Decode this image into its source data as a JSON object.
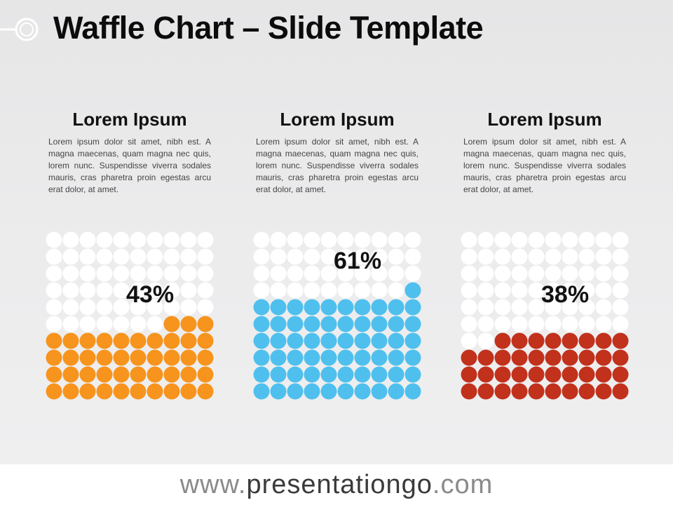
{
  "header": {
    "title": "Waffle Chart – Slide Template"
  },
  "panels": [
    {
      "heading": "Lorem Ipsum",
      "body": "Lorem ipsum dolor sit amet, nibh est. A magna maecenas, quam magna nec quis, lorem nunc. Suspendisse viverra sodales mauris, cras pharetra proin egestas arcu erat dolor, at amet."
    },
    {
      "heading": "Lorem Ipsum",
      "body": "Lorem ipsum dolor sit amet, nibh est. A magna maecenas, quam magna nec quis, lorem nunc. Suspendisse viverra sodales mauris, cras pharetra proin egestas arcu erat dolor, at amet."
    },
    {
      "heading": "Lorem Ipsum",
      "body": "Lorem ipsum dolor sit amet, nibh est. A magna maecenas, quam magna nec quis, lorem nunc. Suspendisse viverra sodales mauris, cras pharetra proin egestas arcu erat dolor, at amet."
    }
  ],
  "chart_data": [
    {
      "type": "waffle",
      "grid": [
        10,
        10
      ],
      "value": 43,
      "label": "43%",
      "color": "#f7941d",
      "empty_color": "#ffffff"
    },
    {
      "type": "waffle",
      "grid": [
        10,
        10
      ],
      "value": 61,
      "label": "61%",
      "color": "#4fc0ee",
      "empty_color": "#ffffff"
    },
    {
      "type": "waffle",
      "grid": [
        10,
        10
      ],
      "value": 38,
      "label": "38%",
      "color": "#c1311c",
      "empty_color": "#ffffff"
    }
  ],
  "footer": {
    "prefix": "www.",
    "domain": "presentationgo",
    "suffix": ".com"
  }
}
